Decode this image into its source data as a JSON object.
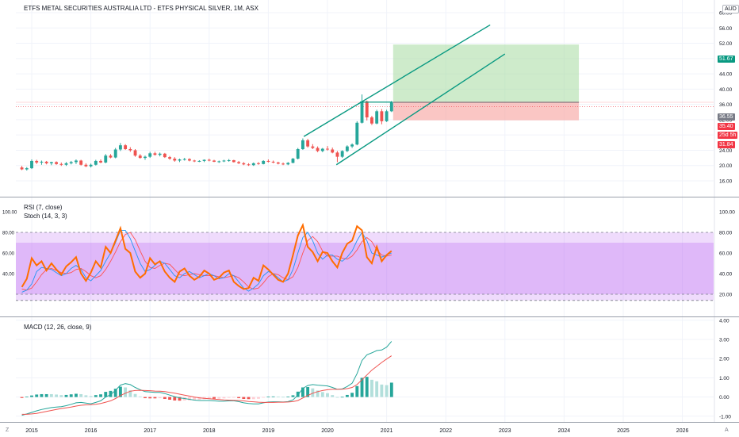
{
  "header": {
    "symbol_title": "ETFS METAL SECURITIES AUSTRALIA LTD - ETFS PHYSICAL SILVER, 1M, ASX",
    "currency_button": "AUD"
  },
  "indicators": {
    "rsi_label": "RSI (7, close)",
    "stoch_label": "Stoch (14, 3, 3)",
    "macd_label": "MACD (12, 26, close, 9)"
  },
  "price_scale": {
    "ticks": [
      "60.00",
      "56.00",
      "52.00",
      "48.00",
      "44.00",
      "40.00",
      "36.00",
      "32.00",
      "28.00",
      "24.00",
      "20.00",
      "16.00"
    ],
    "badges": {
      "target": "51.67",
      "last": "36.55",
      "price": "35.40",
      "countdown": "25d 5h",
      "stop": "31.84"
    }
  },
  "rsi_scale": {
    "ticks": [
      "100.00",
      "80.00",
      "60.00",
      "40.00",
      "20.00"
    ]
  },
  "macd_scale": {
    "ticks": [
      "4.00",
      "3.00",
      "2.00",
      "1.00",
      "0.00",
      "-1.00"
    ]
  },
  "left_scale": {
    "ticks": [
      "100.00",
      "80.00",
      "60.00",
      "40.00"
    ]
  },
  "time_axis": {
    "labels": [
      "2015",
      "2016",
      "2017",
      "2018",
      "2019",
      "2020",
      "2021",
      "2022",
      "2023",
      "2024",
      "2025",
      "2026"
    ]
  },
  "corners": {
    "left": "Z",
    "right": "A"
  },
  "colors": {
    "up": "#26a69a",
    "down": "#ef5350",
    "rsi": "#ff6d00",
    "stoch_k": "#2196f3",
    "stoch_d": "#ff5252",
    "macd": "#26a69a",
    "signal": "#ef5350",
    "band": "#c47ef5",
    "channel": "#089981",
    "target_zone": "#a5dba1",
    "stop_zone": "#f7a7a5"
  },
  "chart_data": [
    {
      "type": "candlestick",
      "title": "ETFS METAL SECURITIES AUSTRALIA LTD - ETFS PHYSICAL SILVER, 1M, ASX",
      "x_range": [
        "2014-11",
        "2026-09"
      ],
      "ylim": [
        16,
        64
      ],
      "x": [
        "2014-11",
        "2014-12",
        "2015-01",
        "2015-02",
        "2015-03",
        "2015-04",
        "2015-05",
        "2015-06",
        "2015-07",
        "2015-08",
        "2015-09",
        "2015-10",
        "2015-11",
        "2015-12",
        "2016-01",
        "2016-02",
        "2016-03",
        "2016-04",
        "2016-05",
        "2016-06",
        "2016-07",
        "2016-08",
        "2016-09",
        "2016-10",
        "2016-11",
        "2016-12",
        "2017-01",
        "2017-02",
        "2017-03",
        "2017-04",
        "2017-05",
        "2017-06",
        "2017-07",
        "2017-08",
        "2017-09",
        "2017-10",
        "2017-11",
        "2017-12",
        "2018-01",
        "2018-02",
        "2018-03",
        "2018-04",
        "2018-05",
        "2018-06",
        "2018-07",
        "2018-08",
        "2018-09",
        "2018-10",
        "2018-11",
        "2018-12",
        "2019-01",
        "2019-02",
        "2019-03",
        "2019-04",
        "2019-05",
        "2019-06",
        "2019-07",
        "2019-08",
        "2019-09",
        "2019-10",
        "2019-11",
        "2019-12",
        "2020-01",
        "2020-02",
        "2020-03",
        "2020-04",
        "2020-05",
        "2020-06",
        "2020-07",
        "2020-08",
        "2020-09",
        "2020-10",
        "2020-11",
        "2020-12",
        "2021-01",
        "2021-02"
      ],
      "ohlc": [
        [
          19.5,
          19.9,
          18.8,
          19.0
        ],
        [
          19.0,
          19.6,
          18.7,
          19.3
        ],
        [
          19.3,
          21.6,
          19.1,
          21.2
        ],
        [
          21.2,
          21.5,
          20.4,
          20.8
        ],
        [
          20.8,
          21.3,
          20.2,
          21.0
        ],
        [
          21.0,
          21.2,
          20.3,
          20.6
        ],
        [
          20.6,
          21.0,
          20.1,
          20.9
        ],
        [
          20.9,
          21.1,
          20.2,
          20.4
        ],
        [
          20.4,
          20.8,
          19.9,
          20.2
        ],
        [
          20.2,
          20.9,
          19.9,
          20.6
        ],
        [
          20.6,
          21.2,
          20.3,
          20.9
        ],
        [
          20.9,
          21.6,
          20.4,
          21.3
        ],
        [
          21.3,
          21.5,
          20.0,
          20.2
        ],
        [
          20.2,
          20.6,
          19.6,
          19.8
        ],
        [
          19.8,
          20.5,
          19.5,
          20.2
        ],
        [
          20.2,
          21.5,
          20.0,
          21.2
        ],
        [
          21.2,
          21.6,
          20.6,
          20.8
        ],
        [
          20.8,
          23.0,
          20.6,
          22.6
        ],
        [
          22.6,
          23.0,
          21.9,
          22.1
        ],
        [
          22.1,
          24.6,
          21.9,
          24.2
        ],
        [
          24.2,
          25.9,
          23.8,
          25.3
        ],
        [
          25.3,
          25.6,
          24.1,
          24.3
        ],
        [
          24.3,
          24.8,
          23.6,
          24.0
        ],
        [
          24.0,
          24.3,
          22.3,
          22.6
        ],
        [
          22.6,
          23.0,
          21.8,
          22.0
        ],
        [
          22.0,
          22.6,
          21.5,
          22.3
        ],
        [
          22.3,
          23.6,
          22.0,
          23.2
        ],
        [
          23.2,
          23.6,
          22.6,
          22.8
        ],
        [
          22.8,
          23.4,
          22.4,
          23.1
        ],
        [
          23.1,
          23.3,
          22.0,
          22.2
        ],
        [
          22.2,
          22.5,
          21.5,
          21.8
        ],
        [
          21.8,
          22.2,
          21.0,
          21.3
        ],
        [
          21.3,
          21.8,
          20.9,
          21.6
        ],
        [
          21.6,
          22.0,
          21.3,
          21.7
        ],
        [
          21.7,
          21.9,
          21.1,
          21.3
        ],
        [
          21.3,
          21.5,
          20.9,
          21.1
        ],
        [
          21.1,
          21.4,
          20.9,
          21.2
        ],
        [
          21.2,
          21.6,
          20.9,
          21.5
        ],
        [
          21.5,
          21.8,
          21.1,
          21.3
        ],
        [
          21.3,
          21.5,
          20.9,
          21.0
        ],
        [
          21.0,
          21.3,
          20.7,
          21.1
        ],
        [
          21.1,
          21.5,
          20.9,
          21.3
        ],
        [
          21.3,
          21.7,
          21.0,
          21.4
        ],
        [
          21.4,
          21.5,
          20.8,
          20.9
        ],
        [
          20.9,
          21.2,
          20.4,
          20.6
        ],
        [
          20.6,
          20.9,
          20.1,
          20.3
        ],
        [
          20.3,
          20.6,
          19.9,
          20.1
        ],
        [
          20.1,
          20.8,
          19.9,
          20.6
        ],
        [
          20.6,
          20.9,
          20.2,
          20.4
        ],
        [
          20.4,
          21.4,
          20.3,
          21.2
        ],
        [
          21.2,
          21.6,
          20.8,
          21.0
        ],
        [
          21.0,
          21.3,
          20.6,
          20.8
        ],
        [
          20.8,
          21.0,
          20.3,
          20.5
        ],
        [
          20.5,
          20.8,
          20.1,
          20.3
        ],
        [
          20.3,
          20.9,
          20.1,
          20.7
        ],
        [
          20.7,
          22.0,
          20.6,
          21.8
        ],
        [
          21.8,
          24.6,
          21.6,
          24.3
        ],
        [
          24.3,
          27.1,
          24.1,
          26.6
        ],
        [
          26.6,
          27.0,
          24.7,
          25.0
        ],
        [
          25.0,
          25.6,
          24.3,
          24.6
        ],
        [
          24.6,
          25.0,
          23.5,
          23.8
        ],
        [
          23.8,
          24.6,
          23.5,
          24.4
        ],
        [
          24.4,
          25.1,
          23.9,
          24.2
        ],
        [
          24.2,
          24.7,
          23.2,
          23.4
        ],
        [
          23.4,
          23.8,
          20.9,
          22.3
        ],
        [
          22.3,
          24.0,
          22.0,
          23.8
        ],
        [
          23.8,
          25.3,
          23.5,
          25.0
        ],
        [
          25.0,
          25.8,
          24.6,
          25.5
        ],
        [
          25.5,
          31.6,
          25.3,
          31.2
        ],
        [
          31.2,
          38.6,
          31.0,
          36.8
        ],
        [
          36.8,
          37.0,
          31.8,
          32.6
        ],
        [
          32.6,
          33.0,
          30.6,
          31.0
        ],
        [
          31.0,
          34.6,
          30.8,
          34.2
        ],
        [
          34.2,
          34.8,
          30.8,
          31.6
        ],
        [
          31.6,
          34.6,
          31.4,
          34.2
        ],
        [
          34.2,
          36.9,
          34.0,
          36.5
        ]
      ]
    },
    {
      "type": "line",
      "title": "RSI (7, close)",
      "ylim": [
        0,
        100
      ],
      "series": [
        {
          "name": "RSI (7, close)",
          "values": [
            27,
            35,
            55,
            48,
            52,
            43,
            50,
            44,
            39,
            47,
            51,
            56,
            40,
            33,
            41,
            52,
            46,
            66,
            60,
            72,
            84,
            64,
            60,
            42,
            36,
            40,
            55,
            49,
            52,
            42,
            36,
            32,
            42,
            45,
            38,
            34,
            37,
            43,
            40,
            34,
            36,
            41,
            43,
            32,
            28,
            25,
            26,
            36,
            33,
            48,
            44,
            39,
            34,
            32,
            40,
            58,
            77,
            87,
            66,
            61,
            52,
            61,
            60,
            52,
            46,
            60,
            69,
            72,
            86,
            82,
            56,
            50,
            66,
            52,
            58,
            62
          ]
        }
      ]
    },
    {
      "type": "line",
      "title": "Stoch (14, 3, 3)",
      "ylim": [
        0,
        100
      ],
      "series": [
        {
          "name": "%K",
          "values": [
            22,
            24,
            30,
            42,
            46,
            45,
            44,
            41,
            38,
            40,
            45,
            48,
            44,
            36,
            33,
            38,
            43,
            52,
            60,
            70,
            82,
            82,
            74,
            62,
            50,
            42,
            44,
            48,
            52,
            50,
            44,
            38,
            36,
            40,
            42,
            39,
            36,
            38,
            40,
            38,
            35,
            36,
            40,
            38,
            32,
            26,
            23,
            26,
            30,
            38,
            42,
            40,
            36,
            32,
            34,
            44,
            60,
            75,
            80,
            72,
            60,
            54,
            58,
            58,
            54,
            52,
            56,
            62,
            72,
            80,
            72,
            60,
            58,
            56,
            58,
            60
          ]
        },
        {
          "name": "%D",
          "values": [
            25,
            24,
            26,
            32,
            39,
            44,
            45,
            43,
            41,
            40,
            41,
            44,
            45,
            42,
            38,
            36,
            38,
            44,
            52,
            61,
            71,
            78,
            80,
            73,
            62,
            52,
            46,
            45,
            48,
            50,
            49,
            44,
            39,
            38,
            39,
            40,
            39,
            38,
            38,
            38,
            37,
            36,
            37,
            38,
            36,
            32,
            27,
            25,
            26,
            31,
            37,
            40,
            39,
            36,
            34,
            37,
            46,
            60,
            72,
            76,
            71,
            62,
            57,
            57,
            57,
            55,
            54,
            57,
            63,
            71,
            75,
            71,
            63,
            58,
            57,
            58
          ]
        }
      ]
    },
    {
      "type": "line",
      "title": "MACD (12, 26, close, 9)",
      "ylim": [
        -1.1,
        4.1
      ],
      "series": [
        {
          "name": "MACD",
          "values": [
            -0.95,
            -0.88,
            -0.8,
            -0.72,
            -0.65,
            -0.6,
            -0.55,
            -0.52,
            -0.5,
            -0.45,
            -0.38,
            -0.3,
            -0.28,
            -0.32,
            -0.35,
            -0.28,
            -0.2,
            0.0,
            0.12,
            0.35,
            0.62,
            0.7,
            0.65,
            0.5,
            0.38,
            0.28,
            0.26,
            0.24,
            0.24,
            0.18,
            0.1,
            0.02,
            -0.04,
            -0.08,
            -0.12,
            -0.16,
            -0.18,
            -0.18,
            -0.18,
            -0.2,
            -0.22,
            -0.22,
            -0.2,
            -0.2,
            -0.24,
            -0.3,
            -0.34,
            -0.36,
            -0.36,
            -0.3,
            -0.26,
            -0.25,
            -0.25,
            -0.26,
            -0.24,
            -0.15,
            0.1,
            0.45,
            0.6,
            0.65,
            0.62,
            0.6,
            0.58,
            0.5,
            0.4,
            0.42,
            0.55,
            0.72,
            1.22,
            1.9,
            2.2,
            2.3,
            2.42,
            2.45,
            2.6,
            2.9
          ]
        },
        {
          "name": "Signal",
          "values": [
            -0.9,
            -0.9,
            -0.88,
            -0.85,
            -0.8,
            -0.75,
            -0.7,
            -0.65,
            -0.6,
            -0.56,
            -0.52,
            -0.47,
            -0.43,
            -0.41,
            -0.4,
            -0.38,
            -0.34,
            -0.27,
            -0.2,
            -0.08,
            0.08,
            0.2,
            0.3,
            0.34,
            0.35,
            0.34,
            0.33,
            0.31,
            0.3,
            0.28,
            0.24,
            0.2,
            0.15,
            0.1,
            0.05,
            0.0,
            -0.04,
            -0.07,
            -0.09,
            -0.11,
            -0.13,
            -0.15,
            -0.16,
            -0.17,
            -0.18,
            -0.2,
            -0.23,
            -0.25,
            -0.27,
            -0.28,
            -0.28,
            -0.28,
            -0.27,
            -0.27,
            -0.26,
            -0.24,
            -0.18,
            -0.05,
            0.08,
            0.2,
            0.28,
            0.34,
            0.38,
            0.4,
            0.4,
            0.41,
            0.44,
            0.5,
            0.65,
            0.9,
            1.15,
            1.4,
            1.6,
            1.8,
            1.98,
            2.15
          ]
        }
      ]
    }
  ]
}
